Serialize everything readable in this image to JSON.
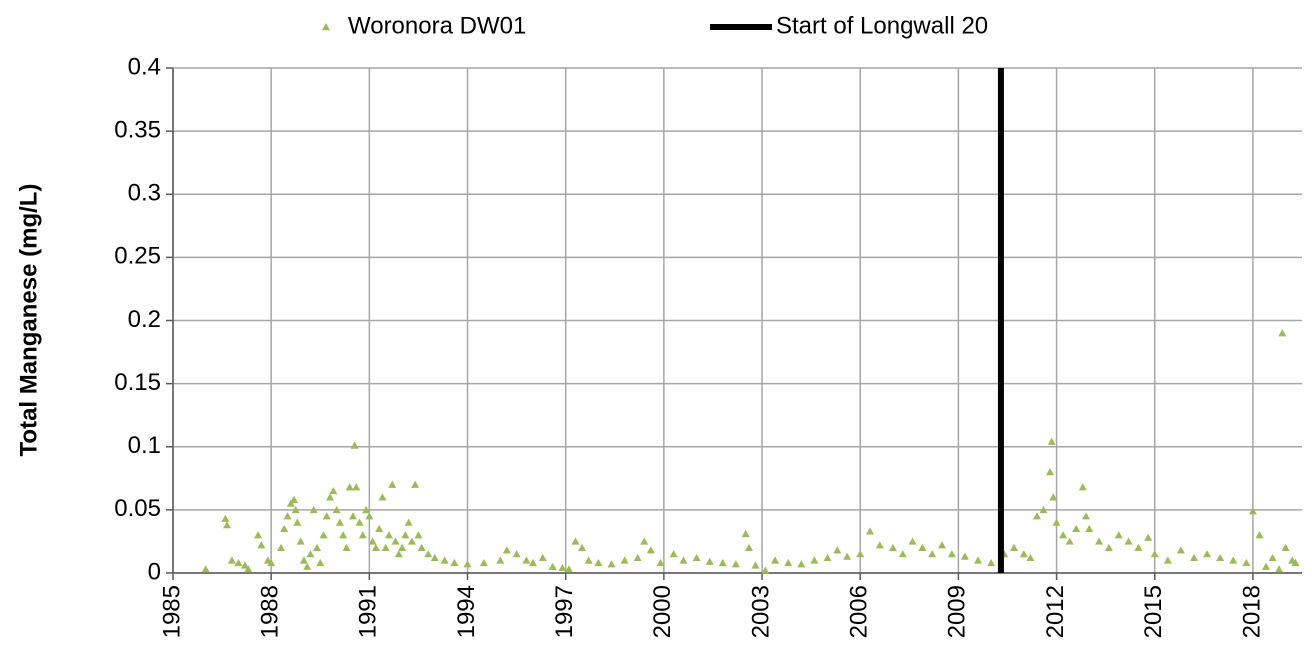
{
  "chart_data": {
    "type": "scatter",
    "y_label": "Total Manganese  (mg/L)",
    "xlim": [
      1985,
      2019.5
    ],
    "xticks": [
      1985,
      1988,
      1991,
      1994,
      1997,
      2000,
      2003,
      2006,
      2009,
      2012,
      2015,
      2018
    ],
    "ylim": [
      0,
      0.4
    ],
    "yticks": [
      0,
      0.05,
      0.1,
      0.15,
      0.2,
      0.25,
      0.3,
      0.35,
      0.4
    ],
    "grid": true,
    "legend": "top",
    "series": [
      {
        "name": "Woronora DW01",
        "type": "scatter",
        "color": "#9bbb59",
        "x": [
          1986.0,
          1986.6,
          1986.65,
          1986.8,
          1987.0,
          1987.2,
          1987.3,
          1987.6,
          1987.7,
          1987.9,
          1988.0,
          1988.3,
          1988.4,
          1988.5,
          1988.6,
          1988.7,
          1988.75,
          1988.8,
          1988.9,
          1989.0,
          1989.1,
          1989.2,
          1989.3,
          1989.4,
          1989.5,
          1989.6,
          1989.7,
          1989.8,
          1989.9,
          1990.0,
          1990.1,
          1990.2,
          1990.3,
          1990.4,
          1990.5,
          1990.55,
          1990.6,
          1990.7,
          1990.8,
          1990.9,
          1991.0,
          1991.1,
          1991.2,
          1991.3,
          1991.4,
          1991.5,
          1991.6,
          1991.7,
          1991.8,
          1991.9,
          1992.0,
          1992.1,
          1992.2,
          1992.3,
          1992.4,
          1992.5,
          1992.6,
          1992.8,
          1993.0,
          1993.3,
          1993.6,
          1994.0,
          1994.5,
          1995.0,
          1995.2,
          1995.5,
          1995.8,
          1996.0,
          1996.3,
          1996.6,
          1996.9,
          1997.1,
          1997.3,
          1997.5,
          1997.7,
          1998.0,
          1998.4,
          1998.8,
          1999.2,
          1999.4,
          1999.6,
          1999.9,
          2000.3,
          2000.6,
          2001.0,
          2001.4,
          2001.8,
          2002.2,
          2002.5,
          2002.6,
          2002.8,
          2003.1,
          2003.4,
          2003.8,
          2004.2,
          2004.6,
          2005.0,
          2005.3,
          2005.6,
          2006.0,
          2006.3,
          2006.6,
          2007.0,
          2007.3,
          2007.6,
          2007.9,
          2008.2,
          2008.5,
          2008.8,
          2009.2,
          2009.6,
          2010.0,
          2010.4,
          2010.7,
          2011.0,
          2011.2,
          2011.4,
          2011.6,
          2011.8,
          2011.85,
          2011.9,
          2012.0,
          2012.2,
          2012.4,
          2012.6,
          2012.8,
          2012.9,
          2013.0,
          2013.3,
          2013.6,
          2013.9,
          2014.2,
          2014.5,
          2014.8,
          2015.0,
          2015.4,
          2015.8,
          2016.2,
          2016.6,
          2017.0,
          2017.4,
          2017.8,
          2018.0,
          2018.2,
          2018.4,
          2018.6,
          2018.8,
          2018.9,
          2019.0,
          2019.2,
          2019.3
        ],
        "values": [
          0.003,
          0.043,
          0.038,
          0.01,
          0.008,
          0.006,
          0.003,
          0.03,
          0.022,
          0.01,
          0.008,
          0.02,
          0.035,
          0.045,
          0.055,
          0.058,
          0.05,
          0.04,
          0.025,
          0.01,
          0.005,
          0.015,
          0.05,
          0.02,
          0.008,
          0.03,
          0.045,
          0.06,
          0.065,
          0.05,
          0.04,
          0.03,
          0.02,
          0.068,
          0.045,
          0.101,
          0.068,
          0.04,
          0.03,
          0.05,
          0.045,
          0.025,
          0.02,
          0.035,
          0.06,
          0.02,
          0.03,
          0.07,
          0.025,
          0.015,
          0.02,
          0.03,
          0.04,
          0.025,
          0.07,
          0.03,
          0.02,
          0.015,
          0.012,
          0.01,
          0.008,
          0.007,
          0.008,
          0.01,
          0.018,
          0.015,
          0.01,
          0.008,
          0.012,
          0.005,
          0.004,
          0.003,
          0.025,
          0.02,
          0.01,
          0.008,
          0.007,
          0.01,
          0.012,
          0.025,
          0.018,
          0.008,
          0.015,
          0.01,
          0.012,
          0.009,
          0.008,
          0.007,
          0.031,
          0.02,
          0.006,
          0.002,
          0.01,
          0.008,
          0.007,
          0.01,
          0.012,
          0.018,
          0.013,
          0.015,
          0.033,
          0.022,
          0.02,
          0.015,
          0.025,
          0.02,
          0.015,
          0.022,
          0.015,
          0.013,
          0.01,
          0.008,
          0.015,
          0.02,
          0.015,
          0.012,
          0.045,
          0.05,
          0.08,
          0.104,
          0.06,
          0.04,
          0.03,
          0.025,
          0.035,
          0.068,
          0.045,
          0.035,
          0.025,
          0.02,
          0.03,
          0.025,
          0.02,
          0.028,
          0.015,
          0.01,
          0.018,
          0.012,
          0.015,
          0.012,
          0.01,
          0.008,
          0.049,
          0.03,
          0.005,
          0.012,
          0.003,
          0.19,
          0.02,
          0.01,
          0.008
        ]
      },
      {
        "name": "Start of Longwall 20",
        "type": "line",
        "color": "#000000",
        "x": [
          2010.3,
          2010.3
        ],
        "values": [
          0,
          0.4
        ]
      }
    ]
  }
}
